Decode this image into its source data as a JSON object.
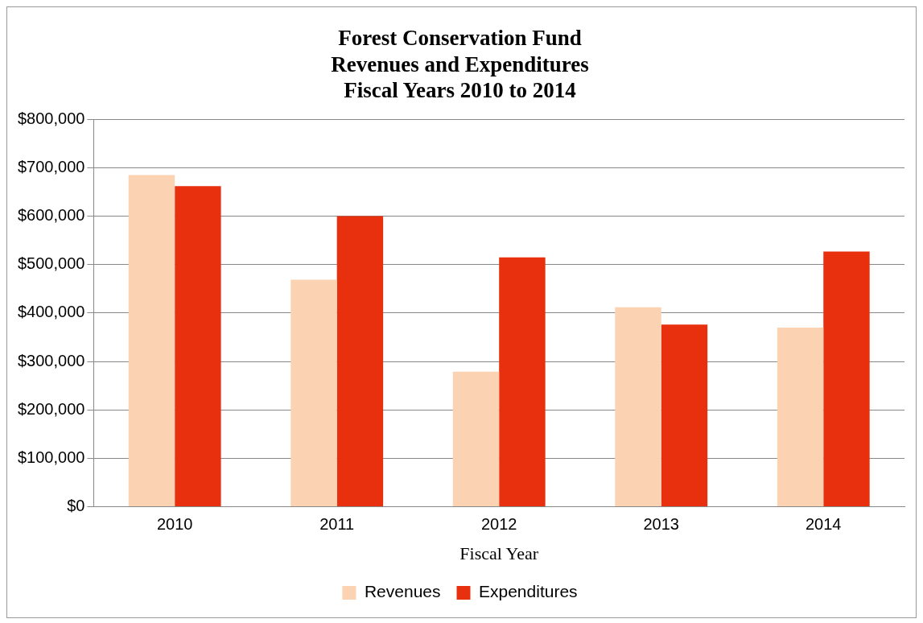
{
  "chart_data": {
    "type": "bar",
    "title": "Forest Conservation Fund\nRevenues and Expenditures\nFiscal Years 2010 to 2014",
    "xlabel": "Fiscal Year",
    "categories": [
      "2010",
      "2011",
      "2012",
      "2013",
      "2014"
    ],
    "series": [
      {
        "name": "Revenues",
        "color": "#fbd2b2",
        "values": [
          685000,
          469000,
          279000,
          412000,
          370000
        ]
      },
      {
        "name": "Expenditures",
        "color": "#e8300e",
        "values": [
          662000,
          600000,
          515000,
          376000,
          527000
        ]
      }
    ],
    "ylim": [
      0,
      800000
    ],
    "yticks": [
      {
        "value": 0,
        "label": "$0"
      },
      {
        "value": 100000,
        "label": "$100,000"
      },
      {
        "value": 200000,
        "label": "$200,000"
      },
      {
        "value": 300000,
        "label": "$300,000"
      },
      {
        "value": 400000,
        "label": "$400,000"
      },
      {
        "value": 500000,
        "label": "$500,000"
      },
      {
        "value": 600000,
        "label": "$600,000"
      },
      {
        "value": 700000,
        "label": "$700,000"
      },
      {
        "value": 800000,
        "label": "$800,000"
      }
    ],
    "grid": "y",
    "legend": "bottom"
  }
}
